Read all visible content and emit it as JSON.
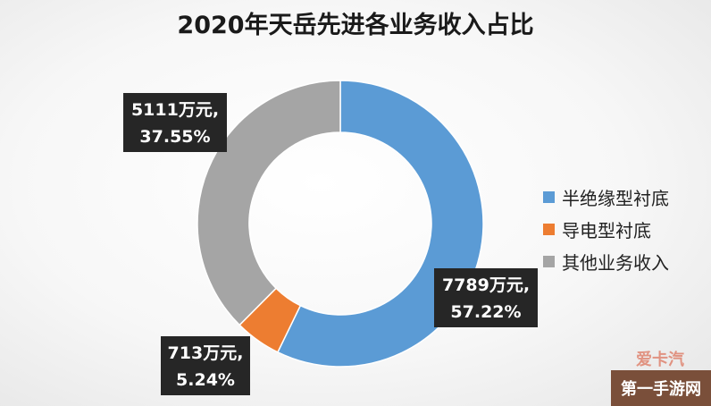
{
  "chart_data": {
    "type": "pie",
    "variant": "donut",
    "title": "2020年天岳先进各业务收入占比",
    "categories": [
      "半绝缘型衬底",
      "导电型衬底",
      "其他业务收入"
    ],
    "values": [
      7789,
      713,
      5111
    ],
    "percents": [
      57.22,
      5.24,
      37.55
    ],
    "colors": [
      "#5B9BD5",
      "#ED7D31",
      "#A5A5A5"
    ],
    "data_labels": [
      {
        "value_text": "7789万元,",
        "percent_text": "57.22%"
      },
      {
        "value_text": "713万元,",
        "percent_text": "5.24%"
      },
      {
        "value_text": "5111万元,",
        "percent_text": "37.55%"
      }
    ],
    "legend_position": "right"
  },
  "watermark": {
    "logo_text": "爱卡汽",
    "site_text": "第一手游网"
  }
}
